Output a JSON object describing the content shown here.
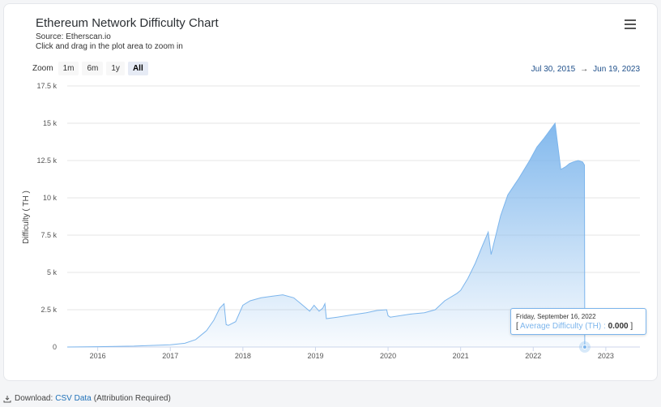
{
  "header": {
    "title": "Ethereum Network Difficulty Chart",
    "source": "Source: Etherscan.io",
    "hint": "Click and drag in the plot area to zoom in"
  },
  "zoom": {
    "label": "Zoom",
    "buttons": [
      "1m",
      "6m",
      "1y",
      "All"
    ],
    "active": "All"
  },
  "range": {
    "from": "Jul 30, 2015",
    "arrow": "→",
    "to": "Jun 19, 2023"
  },
  "tooltip": {
    "date": "Friday, September 16, 2022",
    "open": "[",
    "series": "Average Difficulty (TH)",
    "sep": ":",
    "value": "0.000",
    "close": "]"
  },
  "footer": {
    "download_label": "Download:",
    "csv_link": "CSV Data",
    "attribution": "(Attribution Required)"
  },
  "colors": {
    "line": "#7cb5ec",
    "area_top": "#7cb5ec",
    "range_text": "#1e4f8a"
  },
  "chart_data": {
    "type": "area",
    "title": "Ethereum Network Difficulty Chart",
    "ylabel": "Difficulty ( TH )",
    "xlabel": "",
    "ylim": [
      0,
      17500
    ],
    "xlim": [
      2015.58,
      2023.47
    ],
    "yticks": [
      0,
      2500,
      5000,
      7500,
      10000,
      12500,
      15000,
      17500
    ],
    "ytick_labels": [
      "0",
      "2.5 k",
      "5 k",
      "7.5 k",
      "10 k",
      "12.5 k",
      "15 k",
      "17.5 k"
    ],
    "xticks": [
      2016,
      2017,
      2018,
      2019,
      2020,
      2021,
      2022,
      2023
    ],
    "xtick_labels": [
      "2016",
      "2017",
      "2018",
      "2019",
      "2020",
      "2021",
      "2022",
      "2023"
    ],
    "grid": true,
    "series": [
      {
        "x": [
          2015.58,
          2016.0,
          2016.5,
          2017.0,
          2017.2,
          2017.35,
          2017.5,
          2017.6,
          2017.68,
          2017.74,
          2017.77,
          2017.8,
          2017.9,
          2018.0,
          2018.1,
          2018.25,
          2018.4,
          2018.55,
          2018.7,
          2018.8,
          2018.92,
          2018.98,
          2019.05,
          2019.1,
          2019.13,
          2019.15,
          2019.3,
          2019.5,
          2019.7,
          2019.85,
          2019.98,
          2020.0,
          2020.03,
          2020.3,
          2020.5,
          2020.65,
          2020.78,
          2020.95,
          2021.0,
          2021.1,
          2021.2,
          2021.3,
          2021.38,
          2021.42,
          2021.45,
          2021.55,
          2021.65,
          2021.8,
          2021.95,
          2022.05,
          2022.15,
          2022.3,
          2022.38,
          2022.45,
          2022.5,
          2022.55,
          2022.62,
          2022.68,
          2022.705,
          2022.71
        ],
        "y": [
          0,
          20,
          60,
          150,
          250,
          500,
          1100,
          1800,
          2600,
          2900,
          1500,
          1450,
          1700,
          2800,
          3100,
          3300,
          3400,
          3500,
          3300,
          2900,
          2400,
          2800,
          2400,
          2600,
          2900,
          1900,
          2000,
          2150,
          2300,
          2450,
          2500,
          2100,
          2000,
          2200,
          2300,
          2500,
          3100,
          3600,
          3800,
          4600,
          5600,
          6800,
          7700,
          6200,
          6800,
          8800,
          10200,
          11300,
          12500,
          13400,
          14000,
          15000,
          11900,
          12100,
          12300,
          12400,
          12500,
          12400,
          12200,
          0
        ]
      }
    ]
  }
}
